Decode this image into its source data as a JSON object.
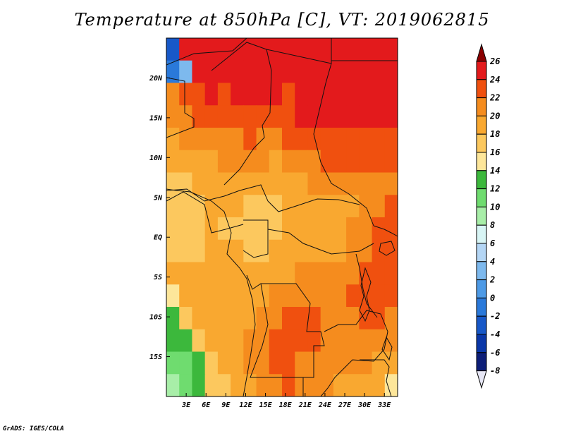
{
  "chart_data": {
    "type": "heatmap",
    "title": "Temperature at 850hPa [C], VT: 2019062815",
    "variable": "Temperature at 850hPa",
    "units": "C",
    "valid_time": "2019062815",
    "x_ticks": [
      "3E",
      "6E",
      "9E",
      "12E",
      "15E",
      "18E",
      "21E",
      "24E",
      "27E",
      "30E",
      "33E"
    ],
    "y_ticks": [
      "20N",
      "15N",
      "10N",
      "5N",
      "EQ",
      "5S",
      "10S",
      "15S"
    ],
    "lon_range": [
      0,
      35
    ],
    "lat_range": [
      -20,
      25
    ],
    "colorbar": {
      "labels": [
        "26",
        "24",
        "22",
        "20",
        "18",
        "16",
        "14",
        "12",
        "10",
        "8",
        "6",
        "4",
        "2",
        "0",
        "-2",
        "-4",
        "-6",
        "-8"
      ],
      "colors": [
        "#8b0000",
        "#e31a1c",
        "#f0500f",
        "#f58c1e",
        "#f9a830",
        "#fcc85e",
        "#fde69a",
        "#3cb83c",
        "#6fdc6f",
        "#a8eea8",
        "#d8f5f5",
        "#b4d6f5",
        "#7db9ee",
        "#4d9ae6",
        "#2a79da",
        "#1758c8",
        "#0a37a8",
        "#0d1e78",
        "#000a50",
        "#e6e6f5"
      ]
    },
    "field": [
      [
        -3,
        24,
        24,
        24,
        24,
        24,
        24,
        24,
        24,
        24,
        24,
        24,
        24,
        24,
        24,
        24,
        24,
        24
      ],
      [
        -1,
        3,
        24,
        24,
        24,
        24,
        24,
        24,
        24,
        24,
        24,
        24,
        24,
        24,
        24,
        24,
        24,
        24
      ],
      [
        21,
        22,
        23,
        24,
        23,
        24,
        24,
        24,
        24,
        23,
        24,
        24,
        24,
        24,
        24,
        24,
        24,
        24
      ],
      [
        20,
        21,
        22,
        22,
        22,
        23,
        23,
        22,
        22,
        23,
        24,
        24,
        24,
        24,
        24,
        24,
        24,
        24
      ],
      [
        19,
        20,
        20,
        21,
        21,
        21,
        22,
        21,
        21,
        22,
        22,
        23,
        23,
        23,
        23,
        23,
        23,
        23
      ],
      [
        18,
        19,
        19,
        19,
        20,
        20,
        20,
        20,
        19,
        20,
        20,
        21,
        22,
        22,
        22,
        22,
        22,
        22
      ],
      [
        16,
        17,
        18,
        18,
        18,
        19,
        19,
        18,
        18,
        19,
        19,
        20,
        20,
        20,
        20,
        21,
        21,
        21
      ],
      [
        16,
        16,
        17,
        18,
        18,
        18,
        17,
        17,
        17,
        18,
        18,
        19,
        19,
        19,
        19,
        20,
        21,
        22
      ],
      [
        16,
        16,
        17,
        18,
        17,
        17,
        17,
        16,
        17,
        18,
        18,
        18,
        18,
        19,
        20,
        21,
        22,
        22
      ],
      [
        17,
        17,
        17,
        18,
        18,
        18,
        17,
        16,
        18,
        18,
        19,
        19,
        19,
        19,
        20,
        21,
        23,
        23
      ],
      [
        18,
        18,
        18,
        18,
        18,
        18,
        18,
        18,
        18,
        19,
        20,
        20,
        20,
        20,
        21,
        22,
        23,
        23
      ],
      [
        14,
        18,
        18,
        19,
        19,
        19,
        18,
        19,
        20,
        21,
        21,
        21,
        21,
        21,
        22,
        22,
        23,
        23
      ],
      [
        13,
        16,
        18,
        18,
        19,
        19,
        19,
        20,
        21,
        22,
        22,
        22,
        21,
        21,
        21,
        22,
        22,
        21
      ],
      [
        12,
        13,
        17,
        18,
        18,
        19,
        20,
        21,
        22,
        22,
        22,
        22,
        21,
        20,
        20,
        21,
        21,
        20
      ],
      [
        10,
        11,
        13,
        16,
        18,
        18,
        20,
        21,
        22,
        22,
        21,
        21,
        20,
        20,
        20,
        20,
        19,
        19
      ],
      [
        8,
        10,
        13,
        16,
        17,
        18,
        19,
        20,
        21,
        22,
        21,
        21,
        20,
        19,
        19,
        19,
        18,
        14
      ]
    ]
  },
  "footer": "GrADS: IGES/COLA"
}
